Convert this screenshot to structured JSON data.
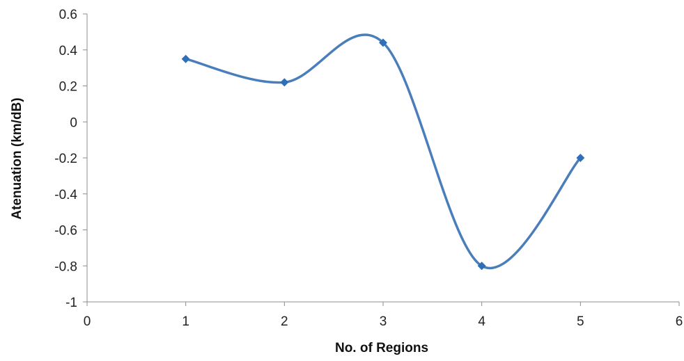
{
  "chart_data": {
    "type": "scatter",
    "title": "",
    "xlabel": "No. of Regions",
    "ylabel": "Atenuation (km/dB)",
    "xlim": [
      0,
      6
    ],
    "ylim": [
      -1,
      0.6
    ],
    "x_ticks": [
      0,
      1,
      2,
      3,
      4,
      5,
      6
    ],
    "y_ticks": [
      0.6,
      0.4,
      0.2,
      0,
      -0.2,
      -0.4,
      -0.6,
      -0.8,
      -1
    ],
    "x_tick_labels": [
      "0",
      "1",
      "2",
      "3",
      "4",
      "5",
      "6"
    ],
    "y_tick_labels": [
      "0.6",
      "0.4",
      "0.2",
      "0",
      "-0.2",
      "-0.4",
      "-0.6",
      "-0.8",
      "-1"
    ],
    "grid": false,
    "legend": "none",
    "line_style": "smoothed line with diamond markers",
    "series": [
      {
        "x": [
          1,
          2,
          3,
          4,
          5
        ],
        "y": [
          0.35,
          0.22,
          0.44,
          -0.8,
          -0.2
        ],
        "color": "#4a7ebb",
        "marker_color": "#2e6fb8"
      }
    ]
  }
}
